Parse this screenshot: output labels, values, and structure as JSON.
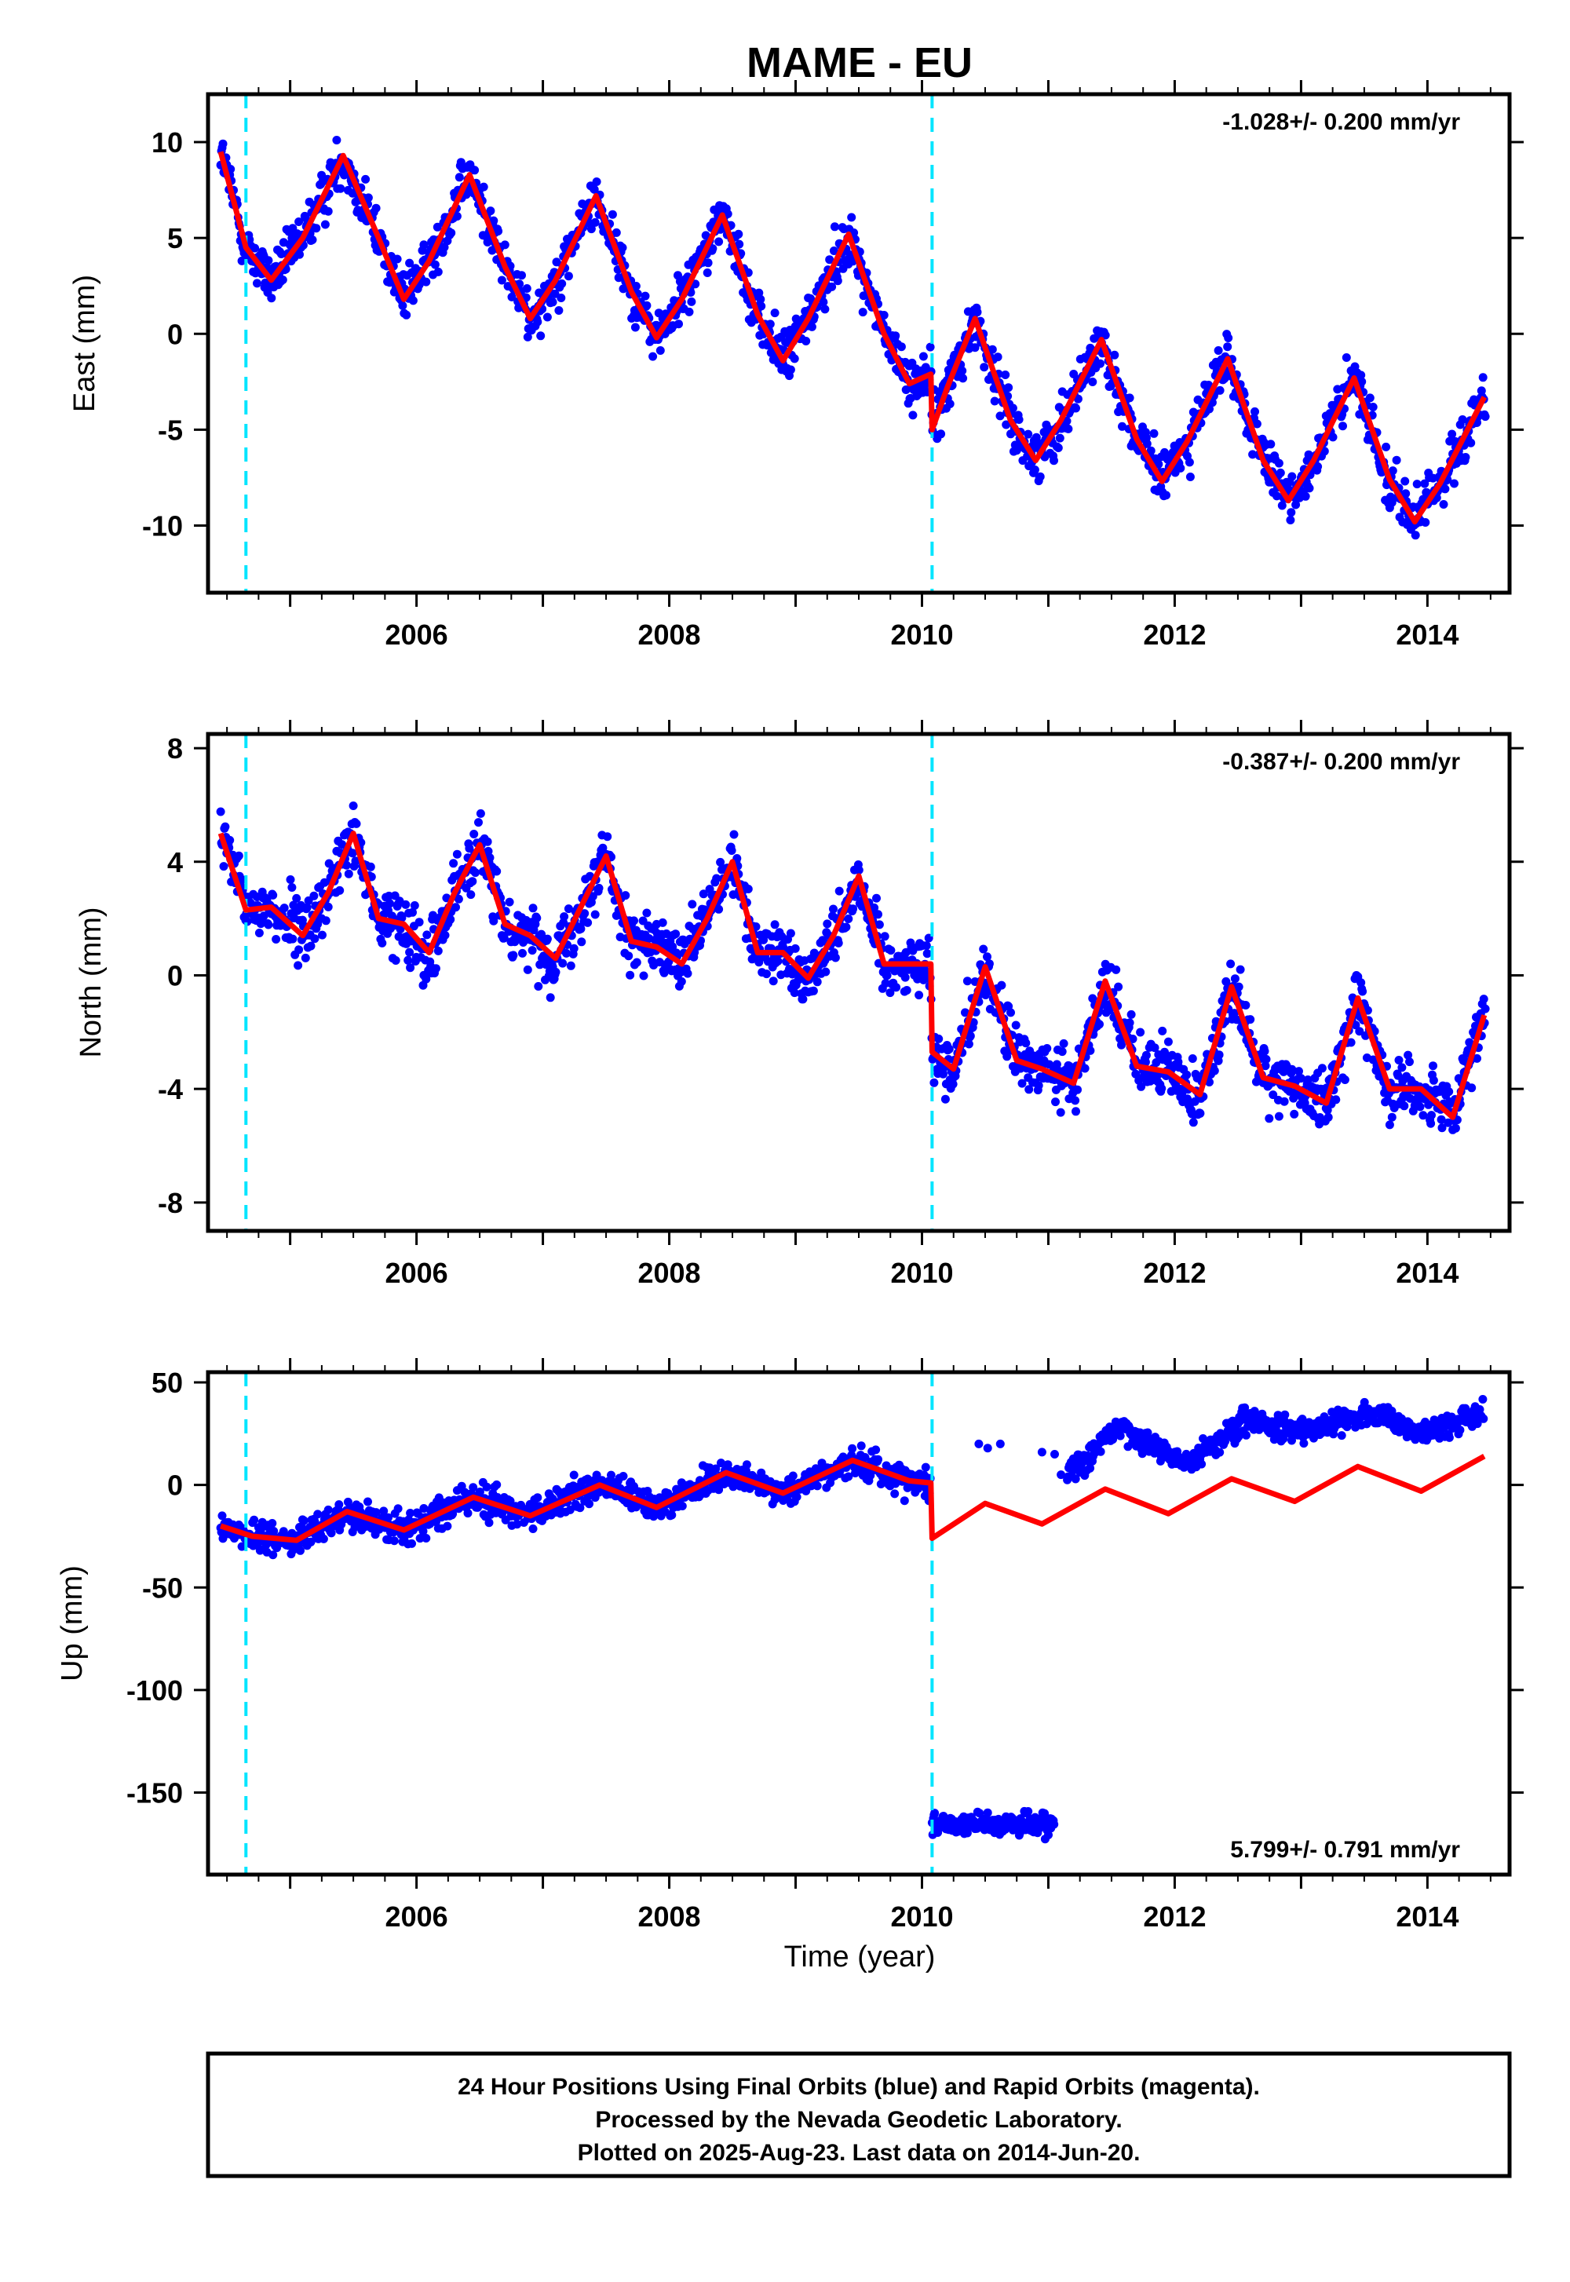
{
  "title": "MAME - EU",
  "colors": {
    "data": "#0000ff",
    "model": "#ff0000",
    "offset": "#00e5ff",
    "frame": "#000000"
  },
  "xaxis": {
    "label": "Time (year)",
    "range": [
      2004.35,
      2014.65
    ],
    "ticks": [
      "2006",
      "2008",
      "2010",
      "2012",
      "2014"
    ]
  },
  "offsets_year": [
    2004.65,
    2010.08
  ],
  "panels": [
    {
      "name": "east",
      "ylabel": "East (mm)",
      "ylim": [
        -13.5,
        12.5
      ],
      "yticks": [
        "10",
        "5",
        "0",
        "-5",
        "-10"
      ],
      "rate": "-1.028+/- 0.200 mm/yr",
      "rate_pos": "top-right"
    },
    {
      "name": "north",
      "ylabel": "North (mm)",
      "ylim": [
        -9,
        8.5
      ],
      "yticks": [
        "8",
        "4",
        "0",
        "-4",
        "-8"
      ],
      "rate": "-0.387+/- 0.200 mm/yr",
      "rate_pos": "top-right"
    },
    {
      "name": "up",
      "ylabel": "Up (mm)",
      "ylim": [
        -190,
        55
      ],
      "yticks": [
        "50",
        "0",
        "-50",
        "-100",
        "-150"
      ],
      "rate": "5.799+/- 0.791 mm/yr",
      "rate_pos": "bottom-right"
    }
  ],
  "footer": {
    "line1": "24 Hour Positions Using Final Orbits (blue) and Rapid Orbits (magenta).",
    "line2": "Processed by the Nevada Geodetic Laboratory.",
    "line3": "Plotted on 2025-Aug-23. Last data on 2014-Jun-20."
  },
  "chart_data": [
    {
      "type": "scatter",
      "title": "MAME - EU",
      "ylabel": "East (mm)",
      "xlabel": "",
      "xlim": [
        2004.35,
        2014.65
      ],
      "ylim": [
        -13.5,
        12.5
      ],
      "x_ticks": [
        2006,
        2008,
        2010,
        2012,
        2014
      ],
      "y_ticks": [
        10,
        5,
        0,
        -5,
        -10
      ],
      "grid": false,
      "series": [
        {
          "kind": "model-line",
          "x": [
            2004.45,
            2004.65,
            2004.85,
            2005.1,
            2005.42,
            2005.7,
            2005.9,
            2006.1,
            2006.42,
            2006.7,
            2006.9,
            2007.1,
            2007.42,
            2007.7,
            2007.9,
            2008.1,
            2008.42,
            2008.7,
            2008.9,
            2009.1,
            2009.42,
            2009.7,
            2009.9,
            2010.07,
            2010.08,
            2010.2,
            2010.42,
            2010.7,
            2010.9,
            2011.1,
            2011.42,
            2011.7,
            2011.9,
            2012.1,
            2012.42,
            2012.7,
            2012.9,
            2013.1,
            2013.42,
            2013.7,
            2013.9,
            2014.1,
            2014.45
          ],
          "y": [
            9.5,
            4.5,
            2.8,
            5,
            9.3,
            5,
            1.8,
            3.8,
            8.3,
            3.5,
            0.8,
            2.8,
            7.2,
            2.2,
            -0.2,
            1.8,
            6.2,
            1,
            -1.4,
            0.8,
            5.2,
            0,
            -2.6,
            -2.1,
            -5,
            -2.8,
            0.8,
            -4.5,
            -6.6,
            -4.5,
            -0.3,
            -5.5,
            -7.7,
            -5.6,
            -1.3,
            -6.6,
            -8.7,
            -6.6,
            -2.3,
            -7.6,
            -9.8,
            -7.8,
            -3.3
          ]
        }
      ]
    },
    {
      "type": "scatter",
      "ylabel": "North (mm)",
      "xlabel": "",
      "xlim": [
        2004.35,
        2014.65
      ],
      "ylim": [
        -9,
        8.5
      ],
      "x_ticks": [
        2006,
        2008,
        2010,
        2012,
        2014
      ],
      "y_ticks": [
        8,
        4,
        0,
        -4,
        -8
      ],
      "grid": false,
      "series": [
        {
          "kind": "model-line",
          "x": [
            2004.45,
            2004.65,
            2004.85,
            2005.1,
            2005.3,
            2005.5,
            2005.7,
            2005.9,
            2006.1,
            2006.3,
            2006.5,
            2006.7,
            2006.9,
            2007.1,
            2007.3,
            2007.5,
            2007.7,
            2007.9,
            2008.1,
            2008.3,
            2008.5,
            2008.7,
            2008.9,
            2009.1,
            2009.3,
            2009.5,
            2009.7,
            2009.9,
            2010.07,
            2010.08,
            2010.25,
            2010.5,
            2010.75,
            2010.95,
            2011.2,
            2011.45,
            2011.7,
            2011.95,
            2012.2,
            2012.45,
            2012.7,
            2012.95,
            2013.2,
            2013.45,
            2013.7,
            2013.95,
            2014.2,
            2014.45
          ],
          "y": [
            5,
            2.3,
            2.4,
            1.4,
            2.9,
            5,
            2,
            1.8,
            0.8,
            2.9,
            4.6,
            1.8,
            1.4,
            0.6,
            2.4,
            4.2,
            1.2,
            1,
            0.4,
            2,
            4,
            0.8,
            0.8,
            -0.1,
            1.4,
            3.5,
            0.4,
            0.4,
            0.4,
            -2.7,
            -3.3,
            0.3,
            -3,
            -3.3,
            -3.8,
            -0.2,
            -3.2,
            -3.4,
            -4.2,
            -0.4,
            -3.6,
            -3.9,
            -4.5,
            -0.8,
            -4,
            -4,
            -5,
            -1.4
          ]
        }
      ]
    },
    {
      "type": "scatter",
      "ylabel": "Up (mm)",
      "xlabel": "Time (year)",
      "xlim": [
        2004.35,
        2014.65
      ],
      "ylim": [
        -190,
        55
      ],
      "x_ticks": [
        2006,
        2008,
        2010,
        2012,
        2014
      ],
      "y_ticks": [
        50,
        0,
        -50,
        -100,
        -150
      ],
      "grid": false,
      "series": [
        {
          "kind": "model-line",
          "x": [
            2004.45,
            2004.7,
            2005.05,
            2005.45,
            2005.9,
            2006.45,
            2006.9,
            2007.45,
            2007.9,
            2008.45,
            2008.9,
            2009.45,
            2009.9,
            2010.07,
            2010.08,
            2010.5,
            2010.95,
            2011.45,
            2011.95,
            2012.45,
            2012.95,
            2013.45,
            2013.95,
            2014.45
          ],
          "y": [
            -20,
            -25,
            -27,
            -13,
            -22,
            -6,
            -15,
            0,
            -11,
            6,
            -4,
            12,
            2,
            1,
            -26,
            -9,
            -19,
            -2,
            -14,
            3,
            -8,
            9,
            -3,
            14
          ]
        }
      ]
    }
  ]
}
